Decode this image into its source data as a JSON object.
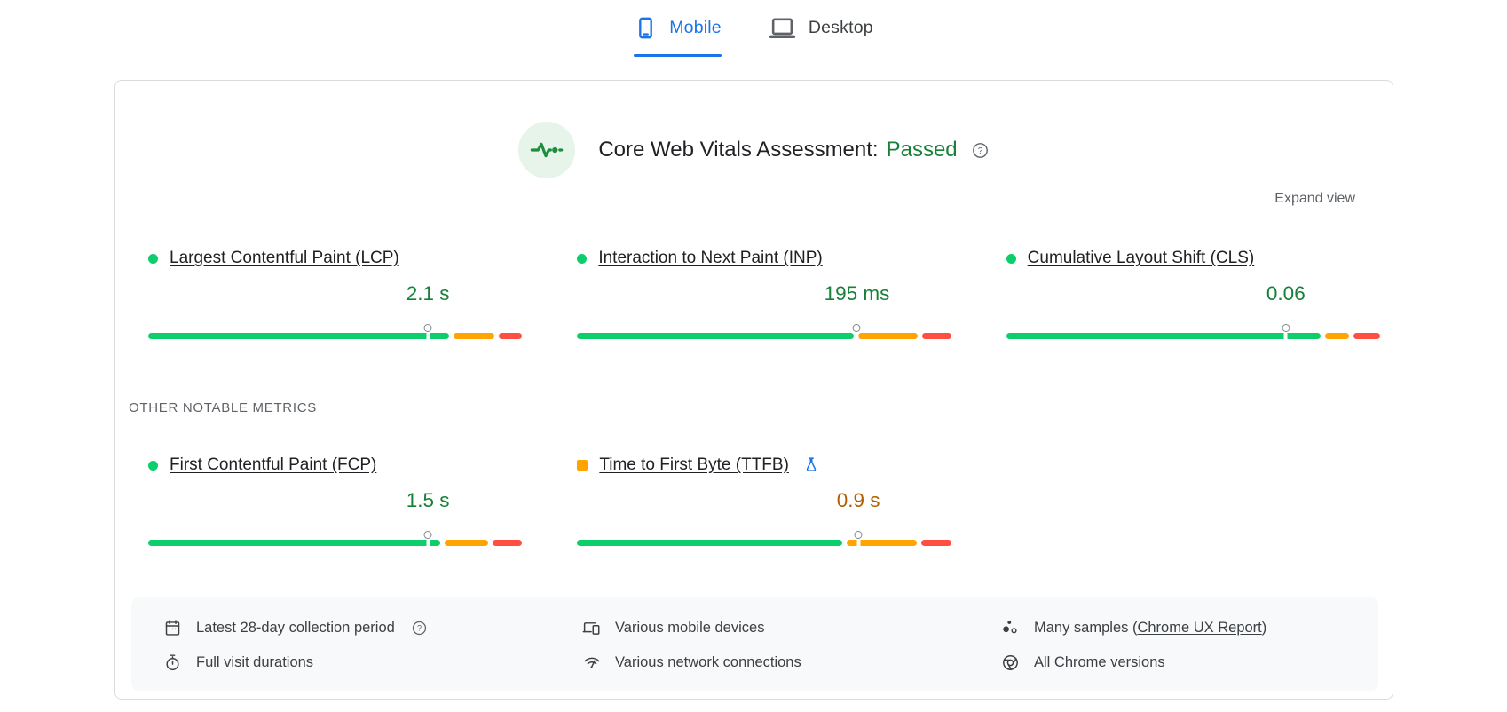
{
  "colors": {
    "accent_blue": "#1a73e8",
    "bar_good": "#0cce6b",
    "bar_needs_improvement": "#ffa400",
    "bar_poor": "#ff4e42",
    "good_value_text": "#188038",
    "average_value_text": "#b06000",
    "muted_text": "#5f6368",
    "pulse_icon_bg": "#e6f4ea",
    "pulse_icon_stroke": "#1e8e3e"
  },
  "device_tabs": [
    {
      "label": "Mobile",
      "icon": "smartphone-icon",
      "active": true
    },
    {
      "label": "Desktop",
      "icon": "laptop-icon",
      "active": false
    }
  ],
  "assessment": {
    "title": "Core Web Vitals Assessment:",
    "result": "Passed",
    "expand_label": "Expand view"
  },
  "core_web_vitals": {
    "metrics": [
      {
        "label": "Largest Contentful Paint (LCP)",
        "value": "2.1 s",
        "status": "good",
        "distribution": {
          "good_pct": 80.5,
          "needs_improvement_pct": 10.8,
          "poor_pct": 6.3
        },
        "p75_marker_pct": 74.8
      },
      {
        "label": "Interaction to Next Paint (INP)",
        "value": "195 ms",
        "status": "good",
        "distribution": {
          "good_pct": 74.0,
          "needs_improvement_pct": 15.8,
          "poor_pct": 7.8
        },
        "p75_marker_pct": 74.8
      },
      {
        "label": "Cumulative Layout Shift (CLS)",
        "value": "0.06",
        "status": "good",
        "distribution": {
          "good_pct": 84.0,
          "needs_improvement_pct": 6.6,
          "poor_pct": 7.0
        },
        "p75_marker_pct": 74.8
      }
    ]
  },
  "other_notable_metrics": {
    "heading": "OTHER NOTABLE METRICS",
    "metrics": [
      {
        "label": "First Contentful Paint (FCP)",
        "value": "1.5 s",
        "status": "good",
        "distribution": {
          "good_pct": 78.2,
          "needs_improvement_pct": 11.6,
          "poor_pct": 7.8
        },
        "p75_marker_pct": 74.8
      },
      {
        "label": "Time to First Byte (TTFB)",
        "value": "0.9 s",
        "status": "average",
        "experimental": true,
        "distribution": {
          "good_pct": 71.0,
          "needs_improvement_pct": 18.6,
          "poor_pct": 8.0
        },
        "p75_marker_pct": 75.2
      }
    ]
  },
  "data_notes": {
    "collection_period": "Latest 28-day collection period",
    "visit_durations": "Full visit durations",
    "devices": "Various mobile devices",
    "connections": "Various network connections",
    "samples_prefix": "Many samples (",
    "samples_link": "Chrome UX Report",
    "samples_suffix": ")",
    "chrome_versions": "All Chrome versions"
  }
}
